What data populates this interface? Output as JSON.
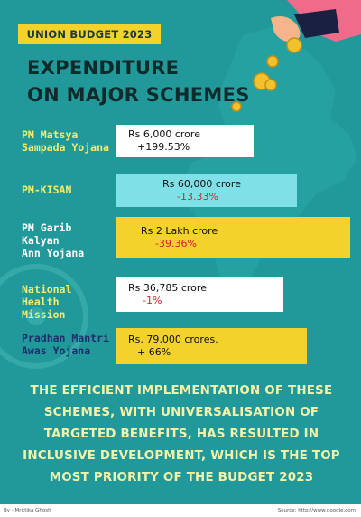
{
  "tag": "UNION BUDGET 2023",
  "title": [
    "EXPENDITURE",
    "ON MAJOR SCHEMES"
  ],
  "colors": {
    "background": "#21999a",
    "yellow": "#f2d22b",
    "cyan": "#7fe0e8",
    "scheme_yellow": "#f4ec6a",
    "scheme_cyan": "#1a2f6b",
    "negative": "#d8202a"
  },
  "chart_data": {
    "type": "bar",
    "orientation": "horizontal",
    "categories": [
      "PM Matsya Sampada Yojana",
      "PM-KISAN",
      "PM Garib Kalyan Ann Yojana",
      "National Health Mission",
      "Pradhan Mantri Awas Yojana"
    ],
    "category_lines": [
      [
        "PM Matsya",
        "Sampada Yojana"
      ],
      [
        "PM-KISAN"
      ],
      [
        "PM Garib Kalyan",
        "Ann Yojana"
      ],
      [
        "National Health",
        "Mission"
      ],
      [
        "Pradhan Mantri",
        "Awas Yojana"
      ]
    ],
    "values_crore": [
      6000,
      60000,
      200000,
      36785,
      79000
    ],
    "amount_labels": [
      "Rs 6,000 crore",
      "Rs 60,000 crore",
      "Rs 2 Lakh crore",
      "Rs 36,785 crore",
      "Rs. 79,000 crores."
    ],
    "change_labels": [
      "+199.53%",
      "-13.33%",
      "-39.36%",
      "-1%",
      "+ 66%"
    ],
    "change_values": [
      199.53,
      -13.33,
      -39.36,
      -1,
      66
    ],
    "bar_colors": [
      "#ffffff",
      "#7fe0e8",
      "#f2d22b",
      "#ffffff",
      "#f2d22b"
    ],
    "label_colors": [
      "#f4ec6a",
      "#f4ec6a",
      "#ffffff",
      "#f4ec6a",
      "#1a2f6b"
    ]
  },
  "paragraph": "THE EFFICIENT IMPLEMENTATION OF THESE SCHEMES, WITH UNIVERSALISATION OF TARGETED BENEFITS, HAS RESULTED IN INCLUSIVE DEVELOPMENT, WHICH IS THE TOP MOST PRIORITY OF THE BUDGET 2023",
  "footer": {
    "by": "By - Mrittika Ghosh",
    "source": "Source: http://www.google.com"
  }
}
